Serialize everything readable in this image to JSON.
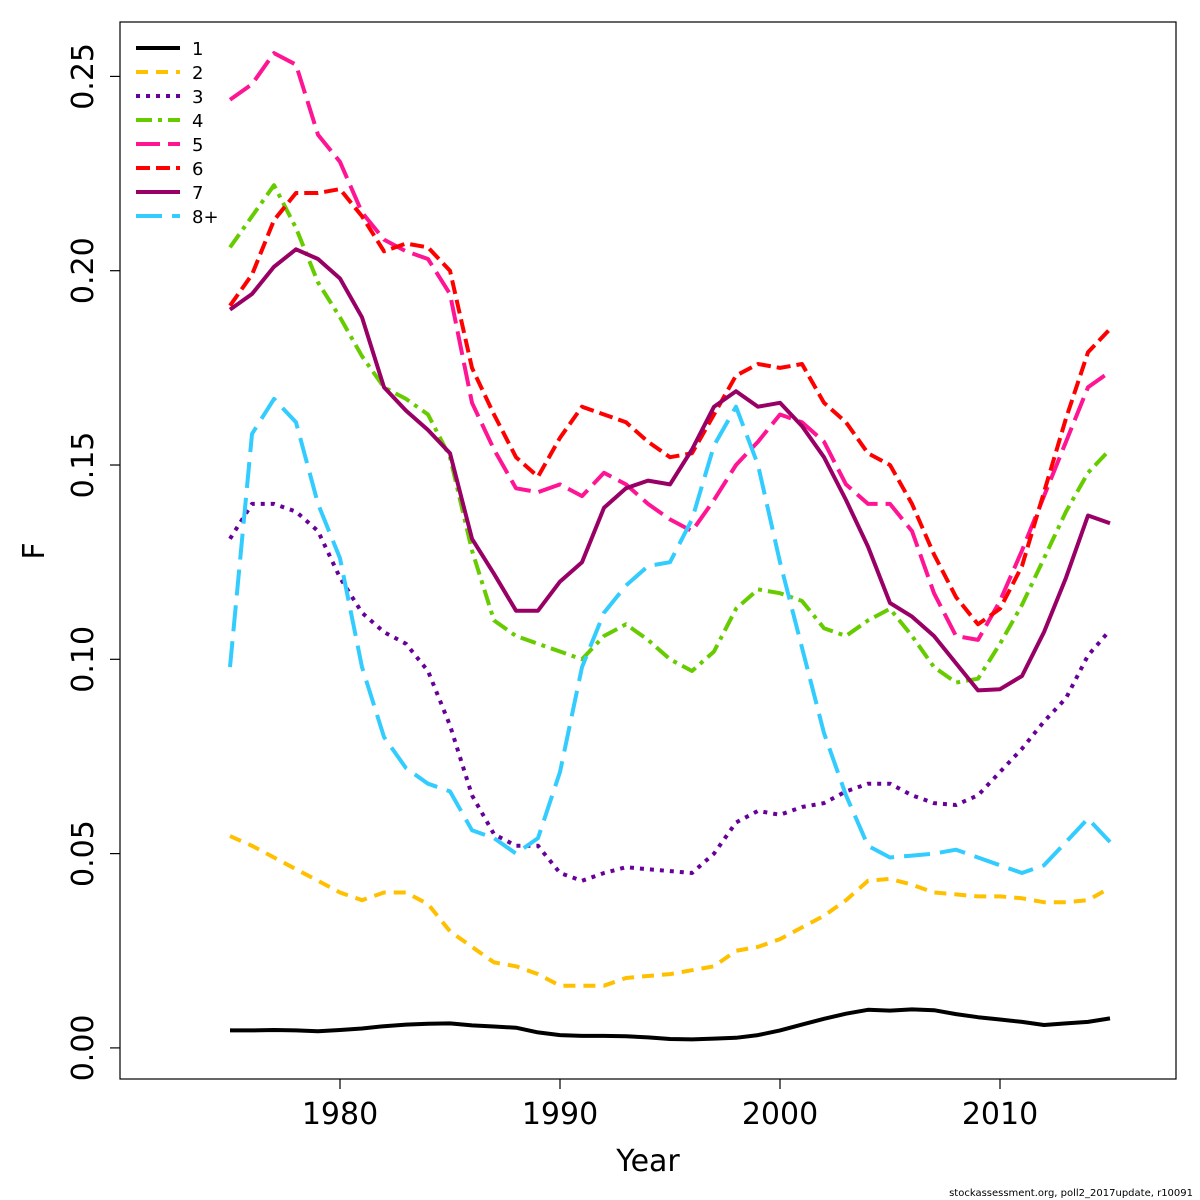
{
  "chart_data": {
    "type": "line",
    "xlabel": "Year",
    "ylabel": "F",
    "xlim": [
      1970,
      2018
    ],
    "ylim": [
      -0.008,
      0.264
    ],
    "xticks": [
      1980,
      1990,
      2000,
      2010
    ],
    "yticks": [
      0.0,
      0.05,
      0.1,
      0.15,
      0.2,
      0.25
    ],
    "ytick_labels": [
      "0.00",
      "0.05",
      "0.10",
      "0.15",
      "0.20",
      "0.25"
    ],
    "grid": false,
    "legend_position": "top-left",
    "x": [
      1975,
      1976,
      1977,
      1978,
      1979,
      1980,
      1981,
      1982,
      1983,
      1984,
      1985,
      1986,
      1987,
      1988,
      1989,
      1990,
      1991,
      1992,
      1993,
      1994,
      1995,
      1996,
      1997,
      1998,
      1999,
      2000,
      2001,
      2002,
      2003,
      2004,
      2005,
      2006,
      2007,
      2008,
      2009,
      2010,
      2011,
      2012,
      2013,
      2014,
      2015
    ],
    "series": [
      {
        "name": "1",
        "color": "#000000",
        "dash": "",
        "width": 4,
        "values": [
          0.0045,
          0.0045,
          0.0046,
          0.0045,
          0.0043,
          0.0046,
          0.005,
          0.0056,
          0.006,
          0.0062,
          0.0063,
          0.0058,
          0.0055,
          0.0052,
          0.004,
          0.0033,
          0.0031,
          0.0031,
          0.003,
          0.0027,
          0.0023,
          0.0022,
          0.0024,
          0.0026,
          0.0033,
          0.0045,
          0.006,
          0.0075,
          0.0088,
          0.0098,
          0.0096,
          0.0099,
          0.0097,
          0.0087,
          0.0079,
          0.0073,
          0.0067,
          0.0059,
          0.0063,
          0.0067,
          0.0076
        ]
      },
      {
        "name": "2",
        "color": "#ffc000",
        "dash": "12,8",
        "width": 4,
        "values": [
          0.0545,
          0.052,
          0.049,
          0.046,
          0.043,
          0.04,
          0.038,
          0.04,
          0.04,
          0.037,
          0.03,
          0.026,
          0.022,
          0.021,
          0.019,
          0.016,
          0.016,
          0.016,
          0.018,
          0.0185,
          0.019,
          0.02,
          0.021,
          0.025,
          0.026,
          0.028,
          0.031,
          0.034,
          0.038,
          0.043,
          0.0435,
          0.042,
          0.04,
          0.0395,
          0.039,
          0.039,
          0.0385,
          0.0375,
          0.0375,
          0.038,
          0.0412
        ]
      },
      {
        "name": "3",
        "color": "#660099",
        "dash": "4,6",
        "width": 4,
        "values": [
          0.131,
          0.14,
          0.14,
          0.138,
          0.133,
          0.121,
          0.112,
          0.107,
          0.104,
          0.097,
          0.083,
          0.065,
          0.055,
          0.052,
          0.052,
          0.045,
          0.043,
          0.045,
          0.0465,
          0.046,
          0.0455,
          0.045,
          0.05,
          0.058,
          0.061,
          0.06,
          0.062,
          0.063,
          0.066,
          0.068,
          0.068,
          0.065,
          0.063,
          0.0625,
          0.065,
          0.071,
          0.077,
          0.084,
          0.09,
          0.101,
          0.1075
        ]
      },
      {
        "name": "4",
        "color": "#66cc00",
        "dash": "16,6,4,6",
        "width": 4,
        "values": [
          0.206,
          0.214,
          0.222,
          0.211,
          0.197,
          0.188,
          0.178,
          0.17,
          0.167,
          0.163,
          0.152,
          0.128,
          0.11,
          0.106,
          0.104,
          0.102,
          0.1,
          0.106,
          0.109,
          0.105,
          0.1,
          0.097,
          0.102,
          0.113,
          0.118,
          0.117,
          0.115,
          0.108,
          0.106,
          0.11,
          0.113,
          0.106,
          0.098,
          0.094,
          0.095,
          0.104,
          0.114,
          0.126,
          0.138,
          0.148,
          0.154
        ]
      },
      {
        "name": "5",
        "color": "#ff1493",
        "dash": "24,8",
        "width": 4,
        "values": [
          0.244,
          0.248,
          0.256,
          0.253,
          0.235,
          0.228,
          0.215,
          0.208,
          0.205,
          0.203,
          0.194,
          0.166,
          0.154,
          0.144,
          0.143,
          0.145,
          0.142,
          0.148,
          0.145,
          0.14,
          0.136,
          0.133,
          0.141,
          0.15,
          0.156,
          0.163,
          0.161,
          0.156,
          0.145,
          0.14,
          0.14,
          0.133,
          0.117,
          0.106,
          0.105,
          0.115,
          0.128,
          0.142,
          0.156,
          0.17,
          0.174
        ]
      },
      {
        "name": "6",
        "color": "#ff0000",
        "dash": "14,6",
        "width": 4,
        "values": [
          0.191,
          0.199,
          0.213,
          0.22,
          0.22,
          0.221,
          0.214,
          0.205,
          0.207,
          0.206,
          0.2,
          0.175,
          0.163,
          0.152,
          0.147,
          0.157,
          0.165,
          0.163,
          0.161,
          0.156,
          0.152,
          0.153,
          0.163,
          0.173,
          0.176,
          0.175,
          0.176,
          0.166,
          0.161,
          0.153,
          0.15,
          0.14,
          0.127,
          0.116,
          0.109,
          0.113,
          0.124,
          0.143,
          0.162,
          0.179,
          0.185
        ]
      },
      {
        "name": "7",
        "color": "#990066",
        "dash": "",
        "width": 4,
        "values": [
          0.19,
          0.194,
          0.201,
          0.2055,
          0.203,
          0.198,
          0.188,
          0.17,
          0.164,
          0.159,
          0.153,
          0.131,
          0.122,
          0.1125,
          0.1125,
          0.12,
          0.125,
          0.139,
          0.144,
          0.146,
          0.145,
          0.154,
          0.165,
          0.169,
          0.165,
          0.166,
          0.16,
          0.152,
          0.141,
          0.129,
          0.1145,
          0.111,
          0.106,
          0.099,
          0.092,
          0.0923,
          0.0957,
          0.107,
          0.121,
          0.137,
          0.135
        ]
      },
      {
        "name": "8+",
        "color": "#33ccff",
        "dash": "26,10",
        "width": 4,
        "values": [
          0.098,
          0.158,
          0.167,
          0.161,
          0.14,
          0.126,
          0.098,
          0.08,
          0.072,
          0.068,
          0.066,
          0.056,
          0.054,
          0.05,
          0.054,
          0.071,
          0.098,
          0.112,
          0.119,
          0.124,
          0.125,
          0.136,
          0.155,
          0.165,
          0.15,
          0.125,
          0.103,
          0.081,
          0.065,
          0.052,
          0.049,
          0.0495,
          0.05,
          0.051,
          0.049,
          0.047,
          0.045,
          0.047,
          0.053,
          0.059,
          0.053
        ]
      }
    ]
  },
  "footer": "stockassessment.org, poll2_2017update, r10091"
}
